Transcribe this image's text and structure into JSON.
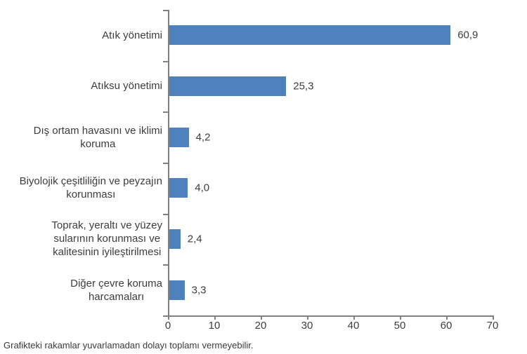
{
  "chart_data": {
    "type": "bar",
    "orientation": "horizontal",
    "title": "",
    "xlabel": "",
    "ylabel": "",
    "xlim": [
      0,
      70
    ],
    "x_ticks": [
      0,
      10,
      20,
      30,
      40,
      50,
      60,
      70
    ],
    "grid": false,
    "legend": false,
    "categories": [
      "Atık yönetimi",
      "Atıksu yönetimi",
      "Dış ortam havasını ve iklimi koruma",
      "Biyolojik çeşitliliğin ve peyzajın korunması",
      "Toprak, yeraltı ve yüzey sularının korunması ve kalitesinin iyileştirilmesi",
      "Diğer çevre koruma harcamaları"
    ],
    "category_lines": [
      [
        "Atık yönetimi"
      ],
      [
        "Atıksu yönetimi"
      ],
      [
        "Dış ortam havasını ve iklimi",
        "koruma"
      ],
      [
        "Biyolojik çeşitliliğin ve peyzajın",
        "korunması"
      ],
      [
        "Toprak, yeraltı ve yüzey",
        "sularının korunması ve",
        "kalitesinin iyileştirilmesi"
      ],
      [
        "Diğer çevre koruma",
        "harcamaları"
      ]
    ],
    "values": [
      60.9,
      25.3,
      4.2,
      4.0,
      2.4,
      3.3
    ],
    "value_labels": [
      "60,9",
      "25,3",
      "4,2",
      "4,0",
      "2,4",
      "3,3"
    ],
    "colors": {
      "bar": "#4f81bd",
      "axis": "#808080",
      "text": "#3d3d3d"
    }
  },
  "footer": {
    "note": "Grafikteki rakamlar yuvarlamadan dolayı toplamı vermeyebilir."
  }
}
